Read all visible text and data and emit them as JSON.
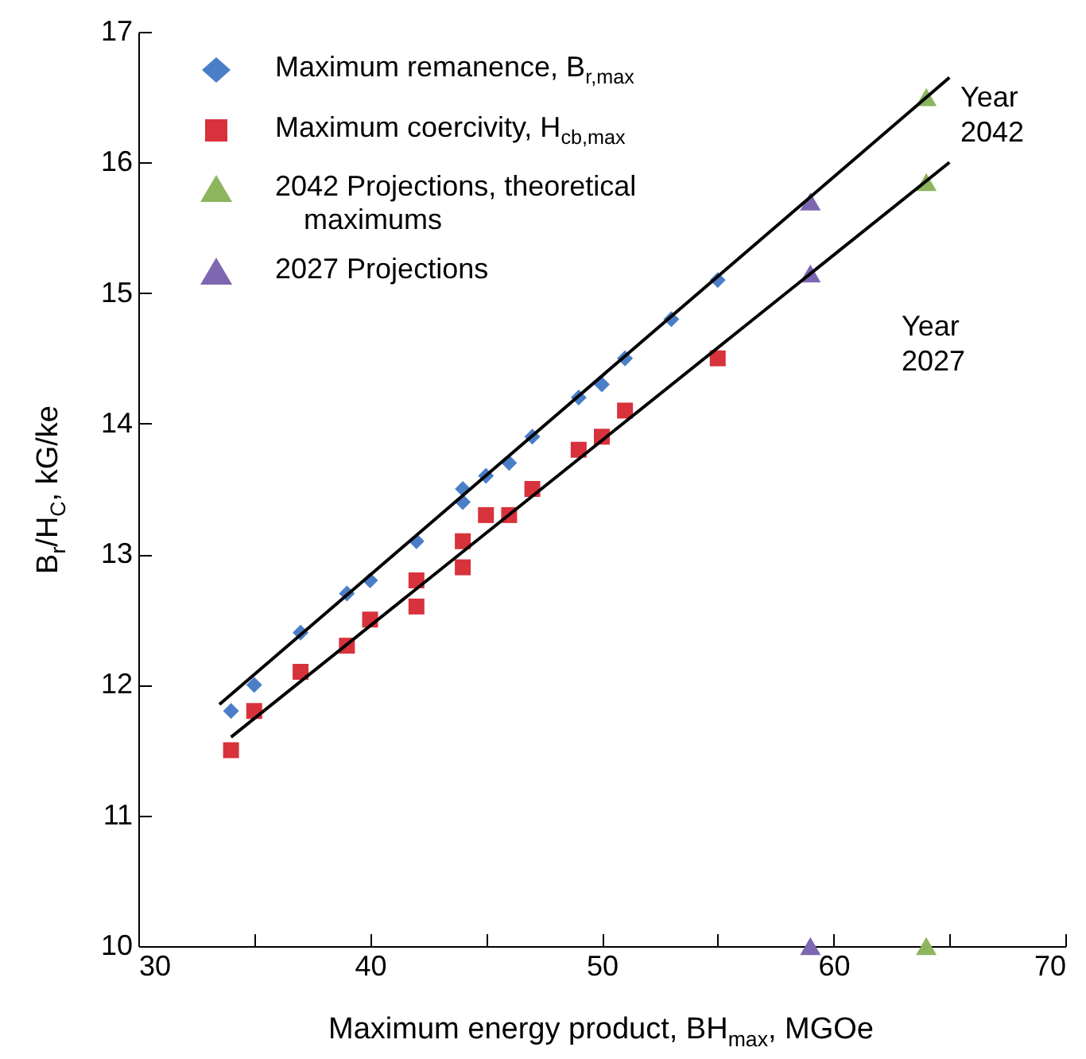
{
  "chart_data": {
    "type": "scatter",
    "xlabel": "Maximum energy product, BH$_{max}$, MGOe",
    "ylabel": "B$_{r}$/H$_{C}$, kG/ke",
    "xlim": [
      30,
      70
    ],
    "ylim": [
      10,
      17
    ],
    "xticks": [
      30,
      {
        "value": 35,
        "label": null
      },
      40,
      {
        "value": 45,
        "label": null
      },
      50,
      {
        "value": 55,
        "label": null
      },
      60,
      {
        "value": 65,
        "label": null
      },
      70
    ],
    "yticks": [
      10,
      11,
      12,
      13,
      14,
      15,
      16,
      17
    ],
    "grid": false,
    "legend": "top left",
    "series": [
      {
        "name": "Maximum remanence, B$_{r,max}$",
        "marker": "diamond",
        "color": "#4a7fc8",
        "x": [
          34,
          35,
          37,
          39,
          40,
          42,
          44,
          44,
          45,
          46,
          47,
          49,
          50,
          51,
          53,
          55
        ],
        "values": [
          11.8,
          12.0,
          12.4,
          12.7,
          12.8,
          13.1,
          13.4,
          13.5,
          13.6,
          13.7,
          13.9,
          14.2,
          14.3,
          14.5,
          14.8,
          15.1
        ]
      },
      {
        "name": "Maximum coercivity, H$_{cb,max}$",
        "marker": "square",
        "color": "#d8323c",
        "x": [
          34,
          35,
          37,
          39,
          40,
          42,
          42,
          44,
          44,
          45,
          46,
          47,
          49,
          50,
          51,
          55
        ],
        "values": [
          11.5,
          11.8,
          12.1,
          12.3,
          12.5,
          12.6,
          12.8,
          12.9,
          13.1,
          13.3,
          13.3,
          13.5,
          13.8,
          13.9,
          14.1,
          14.5
        ]
      },
      {
        "name": "2042 Projections, theoretical maximums",
        "marker": "triangle",
        "color": "#8db55e",
        "x": [
          64,
          64,
          64
        ],
        "values": [
          16.5,
          15.85,
          10.0
        ]
      },
      {
        "name": "2027 Projections",
        "marker": "triangle",
        "color": "#7e66b0",
        "x": [
          59,
          59,
          59
        ],
        "values": [
          15.7,
          15.15,
          10.0
        ]
      },
      {
        "type": "line",
        "marker": "none",
        "color": "#000000",
        "x": [
          33.5,
          65
        ],
        "values": [
          11.85,
          16.65
        ]
      },
      {
        "type": "line",
        "marker": "none",
        "color": "#000000",
        "x": [
          34,
          65
        ],
        "values": [
          11.6,
          16.0
        ]
      }
    ],
    "annotations": [
      "Year 2042",
      "Year 2027"
    ]
  }
}
